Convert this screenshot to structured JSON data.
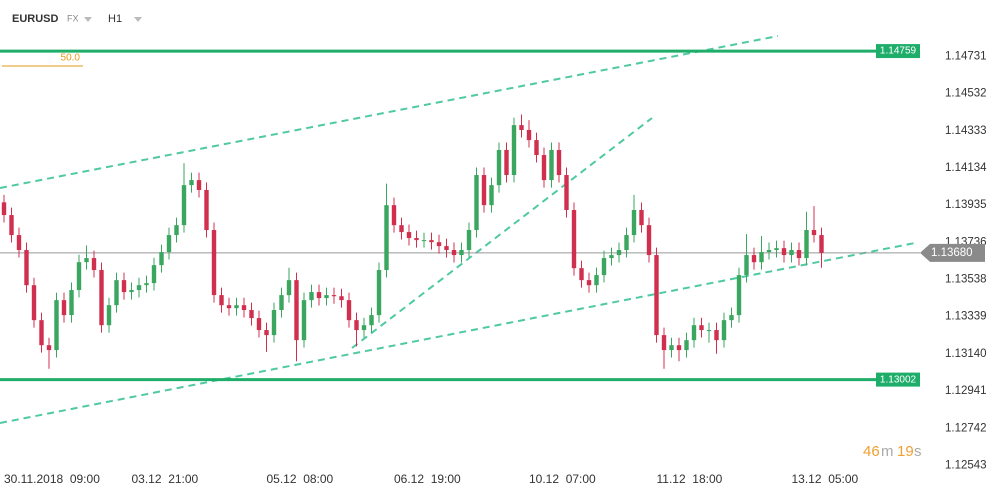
{
  "chart_data": {
    "type": "candlestick",
    "symbol": "EURUSD",
    "market": "FX",
    "timeframe": "H1",
    "indicator_label": "50.0",
    "timer": [
      "46",
      "m",
      "19",
      "s"
    ],
    "up_color": "#3aa65f",
    "down_color": "#d0304e",
    "level_color": "#1fae6a",
    "ylim": [
      1.1254,
      1.15
    ],
    "yticks": [
      1.14731,
      1.14532,
      1.14333,
      1.14134,
      1.13935,
      1.13736,
      1.13538,
      1.13339,
      {
        "value": 1.1314,
        "label": "1.13140"
      },
      1.12941,
      1.12742,
      1.12543
    ],
    "xticks": [
      {
        "value": 0,
        "label": "30.11.2018  09:00"
      },
      {
        "value": 17,
        "label": "03.12  21:00"
      },
      {
        "value": 35,
        "label": "05.12  08:00"
      },
      {
        "value": 52,
        "label": "06.12  19:00"
      },
      {
        "value": 70,
        "label": "10.12  07:00"
      },
      {
        "value": 87,
        "label": "11.12  18:00"
      },
      {
        "value": 105,
        "label": "13.12  05:00"
      }
    ],
    "levels": [
      {
        "value": 1.14759,
        "label": "1.14759"
      },
      {
        "value": 1.13002,
        "label": "1.13002"
      }
    ],
    "last_price": {
      "value": 1.1368,
      "label": "1.13680"
    },
    "candles": [
      [
        1.1395,
        1.1399,
        1.13842,
        1.13882
      ],
      [
        1.13882,
        1.13922,
        1.13735,
        1.13775
      ],
      [
        1.13775,
        1.13815,
        1.13655,
        1.13695
      ],
      [
        1.13695,
        1.13735,
        1.13467,
        1.13507
      ],
      [
        1.13507,
        1.13547,
        1.1328,
        1.1332
      ],
      [
        1.1332,
        1.1336,
        1.13146,
        1.13186
      ],
      [
        1.13186,
        1.13226,
        1.1306,
        1.1316
      ],
      [
        1.1316,
        1.13467,
        1.1312,
        1.13427
      ],
      [
        1.13427,
        1.13467,
        1.13307,
        1.13347
      ],
      [
        1.13347,
        1.13521,
        1.13307,
        1.13481
      ],
      [
        1.13481,
        1.1367,
        1.13441,
        1.1363
      ],
      [
        1.1363,
        1.1372,
        1.1359,
        1.13652
      ],
      [
        1.13652,
        1.13692,
        1.13548,
        1.13588
      ],
      [
        1.13588,
        1.13628,
        1.13253,
        1.13293
      ],
      [
        1.13293,
        1.1344,
        1.13253,
        1.134
      ],
      [
        1.134,
        1.13574,
        1.1336,
        1.13534
      ],
      [
        1.13534,
        1.13574,
        1.1343,
        1.1347
      ],
      [
        1.1347,
        1.13521,
        1.1343,
        1.13481
      ],
      [
        1.13481,
        1.13547,
        1.13441,
        1.13507
      ],
      [
        1.13507,
        1.13558,
        1.13467,
        1.13518
      ],
      [
        1.13518,
        1.13654,
        1.13478,
        1.13614
      ],
      [
        1.13614,
        1.13724,
        1.13574,
        1.13684
      ],
      [
        1.13684,
        1.13815,
        1.13644,
        1.13775
      ],
      [
        1.13775,
        1.13868,
        1.13735,
        1.13828
      ],
      [
        1.13828,
        1.1416,
        1.13788,
        1.14042
      ],
      [
        1.14042,
        1.14109,
        1.14002,
        1.14069
      ],
      [
        1.14069,
        1.14109,
        1.13976,
        1.14016
      ],
      [
        1.14016,
        1.14056,
        1.13762,
        1.13802
      ],
      [
        1.13802,
        1.13842,
        1.13414,
        1.13454
      ],
      [
        1.13454,
        1.13494,
        1.1336,
        1.134
      ],
      [
        1.134,
        1.1344,
        1.13344,
        1.13384
      ],
      [
        1.13384,
        1.1344,
        1.13344,
        1.134
      ],
      [
        1.134,
        1.1344,
        1.13334,
        1.13374
      ],
      [
        1.13374,
        1.13414,
        1.13291,
        1.13331
      ],
      [
        1.13331,
        1.13371,
        1.13227,
        1.13267
      ],
      [
        1.13267,
        1.13307,
        1.1315,
        1.1324
      ],
      [
        1.1324,
        1.13414,
        1.132,
        1.13374
      ],
      [
        1.13374,
        1.13494,
        1.13334,
        1.13454
      ],
      [
        1.13454,
        1.136,
        1.13414,
        1.13534
      ],
      [
        1.13534,
        1.13574,
        1.131,
        1.13213
      ],
      [
        1.13213,
        1.13467,
        1.13173,
        1.13427
      ],
      [
        1.13427,
        1.1351,
        1.13387,
        1.1347
      ],
      [
        1.1347,
        1.1351,
        1.13398,
        1.13438
      ],
      [
        1.13438,
        1.13494,
        1.13398,
        1.13454
      ],
      [
        1.13454,
        1.13494,
        1.13408,
        1.13448
      ],
      [
        1.13448,
        1.13488,
        1.13387,
        1.13427
      ],
      [
        1.13427,
        1.13467,
        1.1328,
        1.1332
      ],
      [
        1.1332,
        1.1336,
        1.1318,
        1.13267
      ],
      [
        1.13267,
        1.13333,
        1.13227,
        1.13293
      ],
      [
        1.13293,
        1.13387,
        1.13253,
        1.13347
      ],
      [
        1.13347,
        1.13628,
        1.13307,
        1.13588
      ],
      [
        1.13588,
        1.1405,
        1.13548,
        1.13935
      ],
      [
        1.13935,
        1.13975,
        1.13788,
        1.13828
      ],
      [
        1.13828,
        1.13868,
        1.13751,
        1.13791
      ],
      [
        1.13791,
        1.13831,
        1.13719,
        1.13759
      ],
      [
        1.13759,
        1.13799,
        1.13708,
        1.13748
      ],
      [
        1.13748,
        1.13788,
        1.13708,
        1.13748
      ],
      [
        1.13748,
        1.13788,
        1.13697,
        1.13737
      ],
      [
        1.13737,
        1.13777,
        1.13676,
        1.13716
      ],
      [
        1.13716,
        1.13756,
        1.13655,
        1.13695
      ],
      [
        1.13695,
        1.13735,
        1.13628,
        1.13668
      ],
      [
        1.13668,
        1.13735,
        1.13628,
        1.13695
      ],
      [
        1.13695,
        1.13842,
        1.13655,
        1.13802
      ],
      [
        1.13802,
        1.14136,
        1.13762,
        1.14096
      ],
      [
        1.14096,
        1.14136,
        1.13895,
        1.13935
      ],
      [
        1.13935,
        1.14082,
        1.13895,
        1.14042
      ],
      [
        1.14042,
        1.1427,
        1.14002,
        1.1423
      ],
      [
        1.1423,
        1.1427,
        1.14056,
        1.14096
      ],
      [
        1.14096,
        1.14403,
        1.14056,
        1.14363
      ],
      [
        1.14363,
        1.1442,
        1.14297,
        1.14337
      ],
      [
        1.14337,
        1.1439,
        1.14243,
        1.14283
      ],
      [
        1.14283,
        1.14323,
        1.14163,
        1.14203
      ],
      [
        1.14203,
        1.14243,
        1.14029,
        1.14069
      ],
      [
        1.14069,
        1.1427,
        1.14029,
        1.1423
      ],
      [
        1.1423,
        1.1427,
        1.14056,
        1.14096
      ],
      [
        1.14096,
        1.14136,
        1.13869,
        1.13909
      ],
      [
        1.13909,
        1.13949,
        1.13558,
        1.13598
      ],
      [
        1.13598,
        1.13638,
        1.13494,
        1.13534
      ],
      [
        1.13534,
        1.13574,
        1.13467,
        1.13507
      ],
      [
        1.13507,
        1.13601,
        1.13467,
        1.13561
      ],
      [
        1.13561,
        1.13692,
        1.13521,
        1.13652
      ],
      [
        1.13652,
        1.13708,
        1.13612,
        1.13668
      ],
      [
        1.13668,
        1.13735,
        1.13628,
        1.13695
      ],
      [
        1.13695,
        1.13815,
        1.13655,
        1.13775
      ],
      [
        1.13775,
        1.1399,
        1.13735,
        1.13909
      ],
      [
        1.13909,
        1.13949,
        1.13788,
        1.13828
      ],
      [
        1.13828,
        1.13868,
        1.13628,
        1.13668
      ],
      [
        1.13668,
        1.13708,
        1.132,
        1.1324
      ],
      [
        1.1324,
        1.1328,
        1.1306,
        1.1316
      ],
      [
        1.1316,
        1.13226,
        1.1312,
        1.13186
      ],
      [
        1.13186,
        1.13226,
        1.131,
        1.1316
      ],
      [
        1.1316,
        1.13253,
        1.1312,
        1.13213
      ],
      [
        1.13213,
        1.13333,
        1.13173,
        1.13293
      ],
      [
        1.13293,
        1.13333,
        1.13227,
        1.13267
      ],
      [
        1.13267,
        1.13307,
        1.132,
        1.13267
      ],
      [
        1.13267,
        1.13307,
        1.1314,
        1.13213
      ],
      [
        1.13213,
        1.1336,
        1.13173,
        1.1332
      ],
      [
        1.1332,
        1.13387,
        1.1328,
        1.13347
      ],
      [
        1.13347,
        1.13601,
        1.13307,
        1.13561
      ],
      [
        1.13561,
        1.1378,
        1.13521,
        1.13668
      ],
      [
        1.13668,
        1.13708,
        1.1359,
        1.1363
      ],
      [
        1.1363,
        1.1377,
        1.1359,
        1.13684
      ],
      [
        1.13684,
        1.13735,
        1.13644,
        1.13695
      ],
      [
        1.13695,
        1.13745,
        1.13655,
        1.13705
      ],
      [
        1.13705,
        1.13745,
        1.13628,
        1.13668
      ],
      [
        1.13668,
        1.13735,
        1.13628,
        1.13695
      ],
      [
        1.13695,
        1.13735,
        1.13612,
        1.13652
      ],
      [
        1.13652,
        1.139,
        1.13612,
        1.13802
      ],
      [
        1.13802,
        1.1393,
        1.13735,
        1.13775
      ],
      [
        1.13775,
        1.13815,
        1.136,
        1.1368
      ]
    ]
  }
}
